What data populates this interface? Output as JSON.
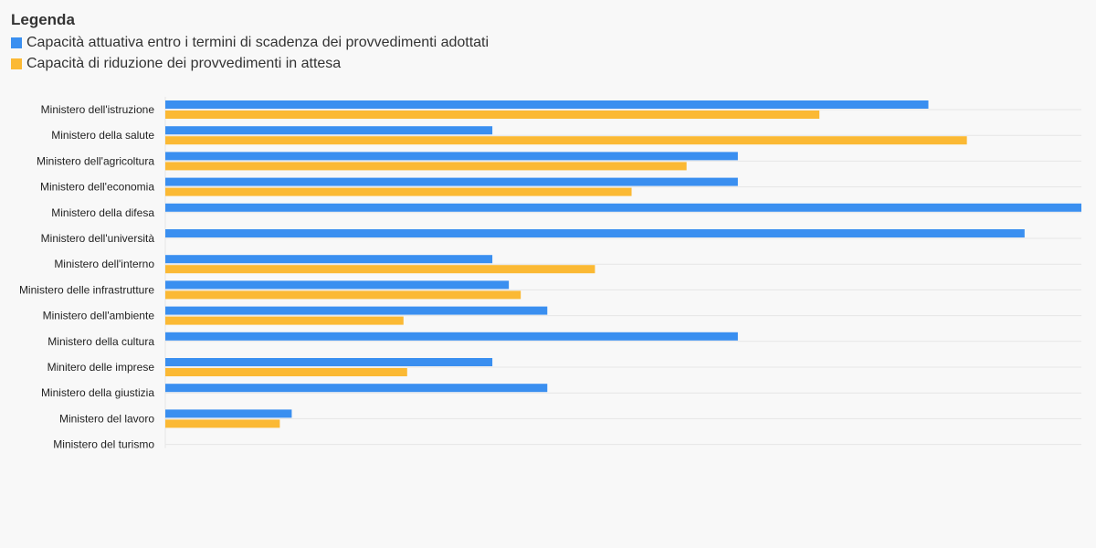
{
  "legend": {
    "title": "Legenda"
  },
  "colors": {
    "series_0": "#3a8ff0",
    "series_1": "#fbb934",
    "grid": "#e6e6e6",
    "background": "#f8f8f8"
  },
  "chart_data": {
    "type": "bar",
    "orientation": "horizontal",
    "categories": [
      "Ministero dell'istruzione",
      "Ministero della salute",
      "Ministero dell'agricoltura",
      "Ministero dell'economia",
      "Ministero della difesa",
      "Ministero dell'università",
      "Ministero dell'interno",
      "Ministero delle infrastrutture",
      "Ministero dell'ambiente",
      "Ministero della cultura",
      "Minitero delle imprese",
      "Ministero della giustizia",
      "Ministero del lavoro",
      "Ministero del turismo"
    ],
    "series": [
      {
        "name": "Capacità attuativa entro i termini di scadenza dei provvedimenti adottati",
        "values": [
          83.3,
          35.7,
          62.5,
          62.5,
          100,
          93.8,
          35.7,
          37.5,
          41.7,
          62.5,
          35.7,
          41.7,
          13.8,
          0
        ]
      },
      {
        "name": "Capacità di riduzione dei provvedimenti in attesa",
        "values": [
          71.4,
          87.5,
          56.9,
          50.9,
          null,
          null,
          46.9,
          38.8,
          26.0,
          null,
          26.4,
          null,
          12.5,
          0
        ]
      }
    ],
    "xlim": [
      0,
      100
    ],
    "grid": true,
    "legend_position": "top-left"
  }
}
